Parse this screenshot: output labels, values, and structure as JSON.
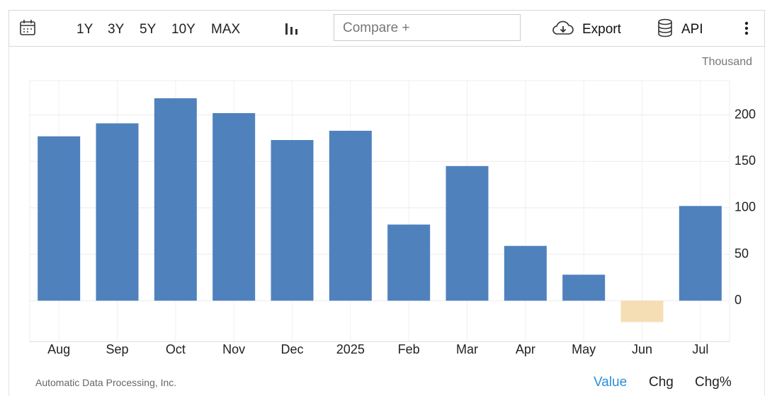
{
  "toolbar": {
    "ranges": [
      "1Y",
      "3Y",
      "5Y",
      "10Y",
      "MAX"
    ],
    "compare": "Compare +",
    "export": "Export",
    "api": "API"
  },
  "chart_data": {
    "type": "bar",
    "unit": "Thousand",
    "categories": [
      "Aug",
      "Sep",
      "Oct",
      "Nov",
      "Dec",
      "2025",
      "Feb",
      "Mar",
      "Apr",
      "May",
      "Jun",
      "Jul"
    ],
    "values": [
      177,
      191,
      218,
      202,
      173,
      183,
      82,
      145,
      59,
      28,
      -23,
      102
    ],
    "color": "#4f81bd",
    "negative_color": "#f5deb3",
    "ylim": [
      -44,
      237
    ],
    "yticks": [
      0,
      50,
      100,
      150,
      200
    ],
    "grid": true
  },
  "footer": {
    "source": "Automatic Data Processing, Inc.",
    "tabs": [
      "Value",
      "Chg",
      "Chg%"
    ]
  }
}
